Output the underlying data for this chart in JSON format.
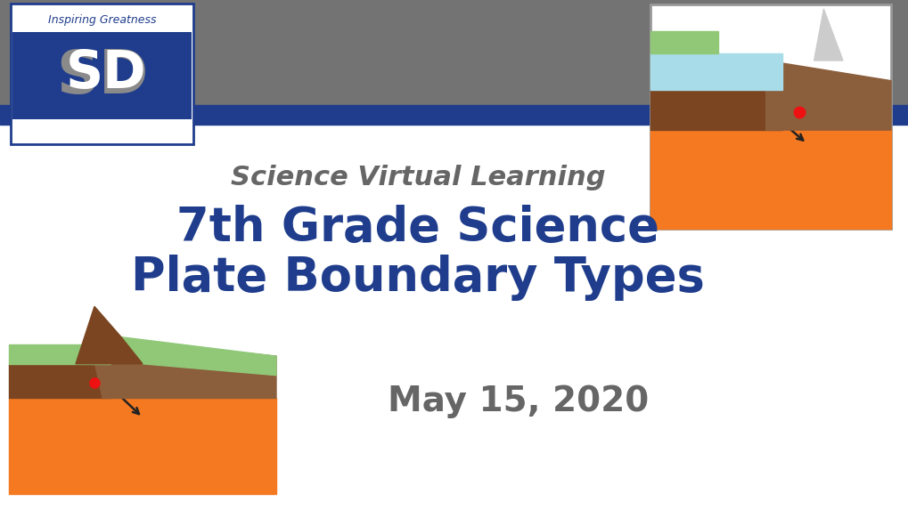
{
  "title_line1": "7th Grade Science",
  "title_line2": "Plate Boundary Types",
  "subtitle": "Science Virtual Learning",
  "date": "May 15, 2020",
  "bg_color": "#ffffff",
  "header_bar_color": "#737373",
  "header_bar2_color": "#1f3d8c",
  "title_color": "#1f3d8c",
  "subtitle_color": "#666666",
  "date_color": "#666666",
  "title_fontsize": 38,
  "subtitle_fontsize": 22,
  "date_fontsize": 28,
  "orange_color": "#f47920",
  "brown_dark": "#7a4520",
  "brown_mid": "#8b5e3c",
  "brown_light": "#a0714f",
  "green_color": "#90c878",
  "blue_water": "#a8dce8",
  "red_hotspot": "#ee1111"
}
